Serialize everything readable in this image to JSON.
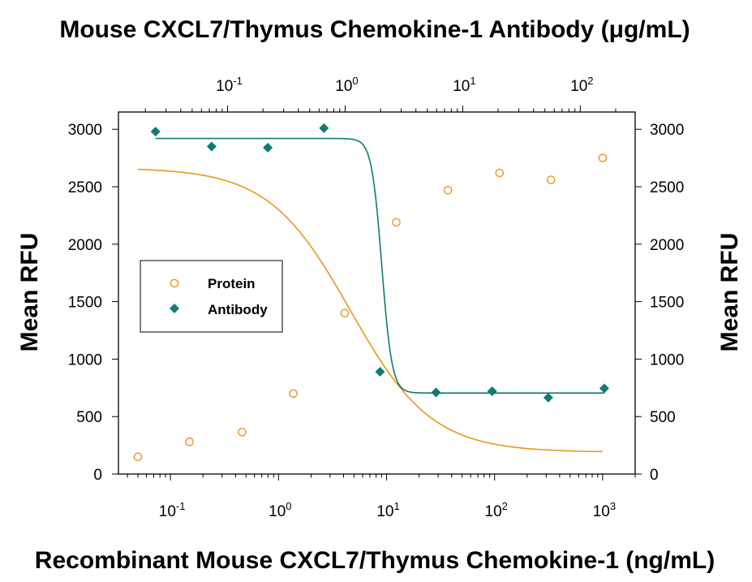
{
  "chart_data": {
    "type": "scatter",
    "title": "Mouse CXCL7/Thymus Chemokine-1 Antibody (μg/mL)",
    "xlabel": "Recombinant Mouse CXCL7/Thymus Chemokine-1 (ng/mL)",
    "ylabel": "Mean RFU",
    "ylabel_right": "Mean RFU",
    "x_scale": "log",
    "top_x_scale": "log",
    "xlim": [
      0.033,
      2000
    ],
    "ylim": [
      0,
      3150
    ],
    "grid": false,
    "legend_position": "center-left",
    "bottom_ticks": [
      {
        "value": 0.1,
        "base": "10",
        "exp": "-1"
      },
      {
        "value": 1,
        "base": "10",
        "exp": "0"
      },
      {
        "value": 10,
        "base": "10",
        "exp": "1"
      },
      {
        "value": 100,
        "base": "10",
        "exp": "2"
      },
      {
        "value": 1000,
        "base": "10",
        "exp": "3"
      }
    ],
    "top_ticks": [
      {
        "value": 0.1,
        "base": "10",
        "exp": "-1"
      },
      {
        "value": 1,
        "base": "10",
        "exp": "0"
      },
      {
        "value": 10,
        "base": "10",
        "exp": "1"
      },
      {
        "value": 100,
        "base": "10",
        "exp": "2"
      }
    ],
    "top_xlim": [
      0.0118,
      293
    ],
    "y_ticks": [
      0,
      500,
      1000,
      1500,
      2000,
      2500,
      3000
    ],
    "series": [
      {
        "name": "Protein",
        "axis": "bottom",
        "marker": "circle-open",
        "color": "#e8961e",
        "x": [
          0.05,
          0.15,
          0.46,
          1.37,
          4.1,
          12.3,
          37,
          111,
          333,
          1000
        ],
        "y": [
          150,
          280,
          365,
          700,
          1400,
          2190,
          2470,
          2620,
          2560,
          2750
        ],
        "fit": {
          "type": "4PL",
          "bottom": 190,
          "top": 2665,
          "ec50": 4.6,
          "hill": 1.15
        }
      },
      {
        "name": "Antibody",
        "axis": "top",
        "marker": "diamond-filled",
        "color": "#127a72",
        "x": [
          0.0244,
          0.0732,
          0.22,
          0.66,
          1.98,
          5.93,
          17.8,
          53.4,
          160
        ],
        "y": [
          2980,
          2850,
          2840,
          3010,
          890,
          710,
          720,
          665,
          745
        ],
        "fit": {
          "type": "4PL",
          "bottom": 705,
          "top": 2920,
          "ec50": 2.05,
          "hill": 10
        }
      }
    ]
  }
}
